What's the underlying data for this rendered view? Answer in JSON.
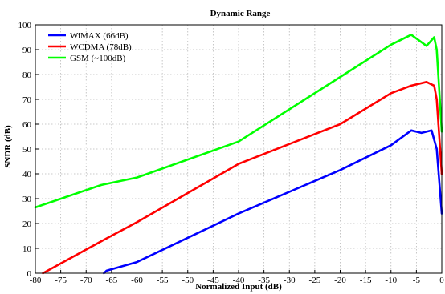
{
  "chart_data": {
    "type": "line",
    "title": "Dynamic Range",
    "xlabel": "Normalized Input (dB)",
    "ylabel": "SNDR (dB)",
    "xlim": [
      -80,
      0
    ],
    "ylim": [
      0,
      100
    ],
    "xticks": [
      -80,
      -75,
      -70,
      -65,
      -60,
      -55,
      -50,
      -45,
      -40,
      -35,
      -30,
      -25,
      -20,
      -15,
      -10,
      -5,
      0
    ],
    "yticks": [
      0,
      10,
      20,
      30,
      40,
      50,
      60,
      70,
      80,
      90,
      100
    ],
    "grid": true,
    "legend_position": "top-left",
    "series": [
      {
        "name": "WiMAX (66dB)",
        "color": "#0000ff",
        "x": [
          -66.5,
          -66,
          -60,
          -40,
          -20,
          -15,
          -10,
          -6,
          -4,
          -2,
          -1,
          0
        ],
        "y": [
          0,
          1,
          4.5,
          24,
          41.5,
          46.5,
          51.5,
          57.5,
          56.5,
          57.5,
          50,
          24
        ]
      },
      {
        "name": "WCDMA (78dB)",
        "color": "#ff0000",
        "x": [
          -78.5,
          -66,
          -60,
          -40,
          -20,
          -10,
          -6,
          -3,
          -1.5,
          -1,
          0
        ],
        "y": [
          0,
          14,
          20.5,
          44,
          60,
          72.5,
          75.5,
          77,
          75.5,
          70,
          40
        ]
      },
      {
        "name": "GSM (~100dB)",
        "color": "#00ff00",
        "x": [
          -80,
          -67,
          -60,
          -40,
          -20,
          -10,
          -6,
          -3,
          -1.5,
          -1,
          0
        ],
        "y": [
          26.5,
          35.5,
          38.5,
          53,
          79,
          92,
          96,
          91.5,
          95,
          90,
          57
        ]
      }
    ]
  }
}
